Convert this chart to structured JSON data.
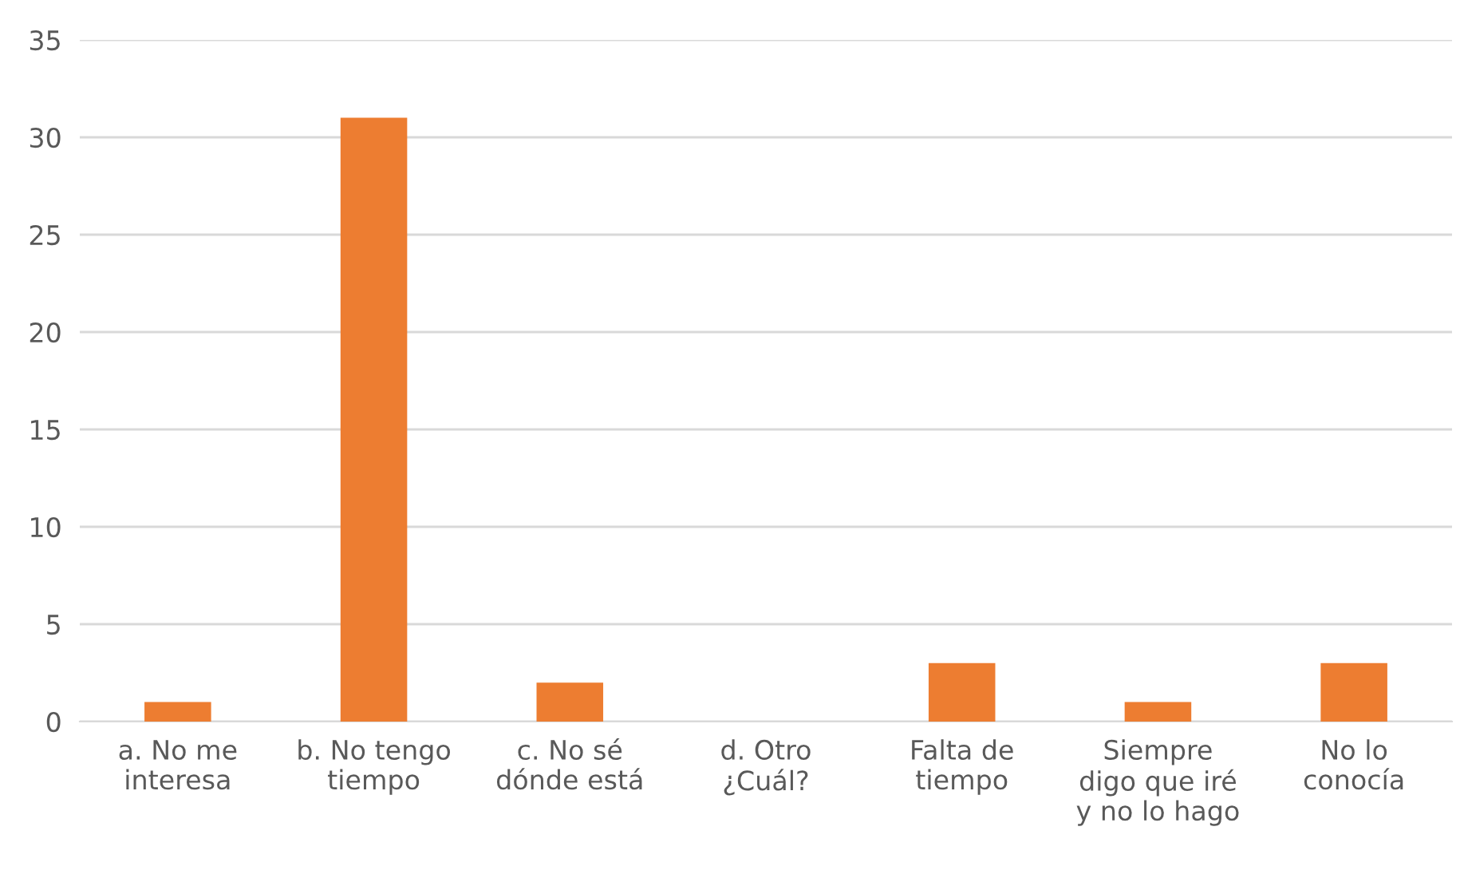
{
  "chart_data": {
    "type": "bar",
    "categories": [
      "a. No me\ninteresa",
      "b. No tengo\ntiempo",
      "c. No sé\ndónde está",
      "d. Otro\n¿Cuál?",
      "Falta de\ntiempo",
      "Siempre\ndigo que iré\ny no lo hago",
      "No lo\nconocía"
    ],
    "values": [
      1,
      31,
      2,
      0,
      3,
      1,
      3
    ],
    "color": "#ed7d31",
    "ylim": [
      0,
      35
    ],
    "yticks": [
      0,
      5,
      10,
      15,
      20,
      25,
      30,
      35
    ],
    "grid": "y",
    "legend": false
  }
}
